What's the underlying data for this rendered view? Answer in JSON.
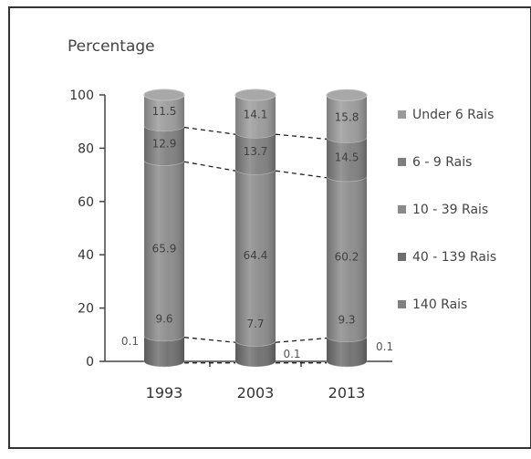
{
  "colors": {
    "under_6": "#9a9a9a",
    "six_9": "#7e7e7e",
    "ten_39": "#8a8a8a",
    "forty_139": "#6e6e6e",
    "over_140": "#808080",
    "text": "#333333",
    "label": "#3f3f3f",
    "axis": "#444444",
    "frame": "#333333"
  },
  "chart_data": {
    "type": "bar",
    "stacked": true,
    "style": "3d-cylinder",
    "ylabel": "Percentage",
    "xlabel": "",
    "ylim": [
      0,
      100
    ],
    "yticks": [
      0,
      20,
      40,
      60,
      80,
      100
    ],
    "categories": [
      "1993",
      "2003",
      "2013"
    ],
    "legend_position": "right",
    "series": [
      {
        "name": "140 Rais",
        "values": [
          0.1,
          0.1,
          0.1
        ],
        "labels": [
          "0.1",
          "0.1",
          "0.1"
        ]
      },
      {
        "name": "40 - 139 Rais",
        "values": [
          9.6,
          7.7,
          9.3
        ],
        "labels": [
          "9.6",
          "7.7",
          "9.3"
        ]
      },
      {
        "name": "10 - 39 Rais",
        "values": [
          65.9,
          64.4,
          60.2
        ],
        "labels": [
          "65.9",
          "64.4",
          "60.2"
        ]
      },
      {
        "name": "6 - 9 Rais",
        "values": [
          12.9,
          13.7,
          14.5
        ],
        "labels": [
          "12.9",
          "13.7",
          "14.5"
        ]
      },
      {
        "name": "Under 6 Rais",
        "values": [
          11.5,
          14.1,
          15.8
        ],
        "labels": [
          "11.5",
          "14.1",
          "15.8"
        ]
      }
    ],
    "legend_order": [
      "Under 6 Rais",
      "6 - 9 Rais",
      "10 - 39 Rais",
      "40 - 139 Rais",
      "140 Rais"
    ]
  }
}
